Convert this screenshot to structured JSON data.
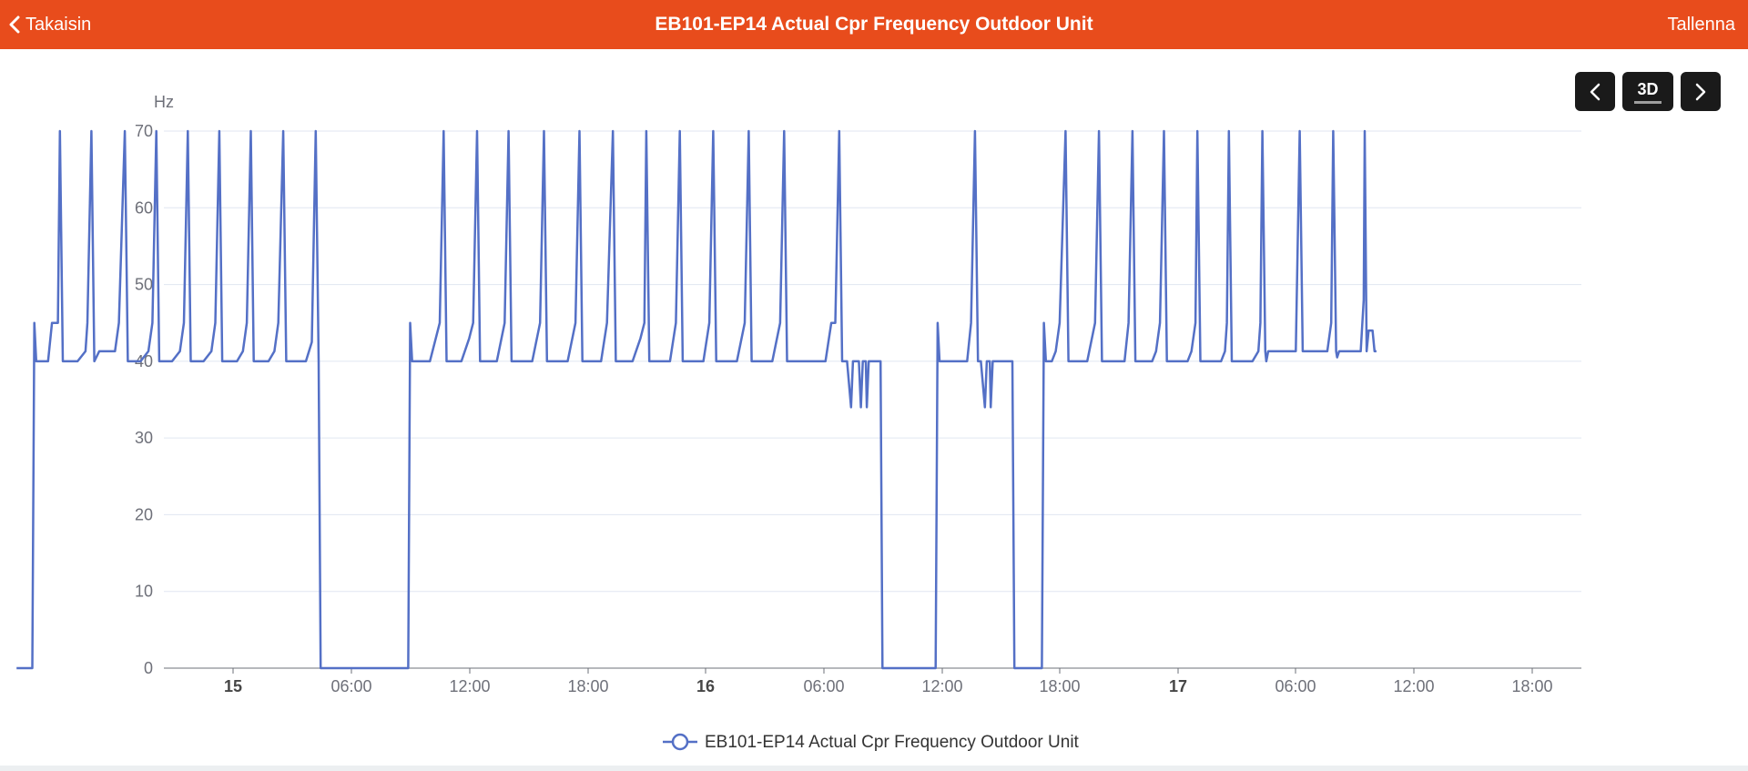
{
  "header": {
    "back_label": "Takaisin",
    "title": "EB101-EP14 Actual Cpr Frequency Outdoor Unit",
    "save_label": "Tallenna",
    "background_color": "#e84c1c"
  },
  "controls": {
    "prev_icon": "chevron-left-icon",
    "range_label": "3D",
    "next_icon": "chevron-right-icon"
  },
  "chart_data": {
    "type": "line",
    "title": "",
    "ylabel": "Hz",
    "xlabel": "",
    "ylim": [
      0,
      70
    ],
    "yticks": [
      0,
      10,
      20,
      30,
      40,
      50,
      60,
      70
    ],
    "grid": true,
    "legend_position": "bottom-center",
    "series_color": "#5470c6",
    "xticks": [
      {
        "label": "15",
        "bold": true
      },
      {
        "label": "06:00",
        "bold": false
      },
      {
        "label": "12:00",
        "bold": false
      },
      {
        "label": "18:00",
        "bold": false
      },
      {
        "label": "16",
        "bold": true
      },
      {
        "label": "06:00",
        "bold": false
      },
      {
        "label": "12:00",
        "bold": false
      },
      {
        "label": "18:00",
        "bold": false
      },
      {
        "label": "17",
        "bold": true
      },
      {
        "label": "06:00",
        "bold": false
      },
      {
        "label": "12:00",
        "bold": false
      },
      {
        "label": "18:00",
        "bold": false
      }
    ],
    "x_unit": "hours since 14 Dec 21:00",
    "x_range": [
      0,
      68.6
    ],
    "series": [
      {
        "name": "EB101-EP14 Actual Cpr Frequency Outdoor Unit",
        "points": [
          [
            0,
            0
          ],
          [
            0.8,
            0
          ],
          [
            0.9,
            45
          ],
          [
            1.0,
            40
          ],
          [
            1.6,
            40
          ],
          [
            1.8,
            45
          ],
          [
            2.1,
            45
          ],
          [
            2.2,
            70
          ],
          [
            2.35,
            40
          ],
          [
            3.1,
            40
          ],
          [
            3.5,
            41.3
          ],
          [
            3.6,
            45
          ],
          [
            3.8,
            70
          ],
          [
            3.95,
            40
          ],
          [
            4.2,
            41.3
          ],
          [
            5.0,
            41.3
          ],
          [
            5.2,
            45
          ],
          [
            5.5,
            70
          ],
          [
            5.65,
            40
          ],
          [
            6.3,
            40
          ],
          [
            6.7,
            41.3
          ],
          [
            6.9,
            45
          ],
          [
            7.1,
            70
          ],
          [
            7.25,
            40
          ],
          [
            7.9,
            40
          ],
          [
            8.3,
            41.3
          ],
          [
            8.5,
            45
          ],
          [
            8.7,
            70
          ],
          [
            8.85,
            40
          ],
          [
            9.5,
            40
          ],
          [
            9.9,
            41.3
          ],
          [
            10.1,
            45
          ],
          [
            10.3,
            70
          ],
          [
            10.45,
            40
          ],
          [
            11.2,
            40
          ],
          [
            11.5,
            41.3
          ],
          [
            11.7,
            45
          ],
          [
            11.9,
            70
          ],
          [
            12.05,
            40
          ],
          [
            12.8,
            40
          ],
          [
            13.1,
            41.3
          ],
          [
            13.3,
            45
          ],
          [
            13.55,
            70
          ],
          [
            13.7,
            40
          ],
          [
            14.7,
            40
          ],
          [
            15.0,
            42.5
          ],
          [
            15.2,
            70
          ],
          [
            15.35,
            40
          ],
          [
            15.45,
            0
          ],
          [
            19.9,
            0
          ],
          [
            20.0,
            45
          ],
          [
            20.1,
            40
          ],
          [
            21.0,
            40
          ],
          [
            21.3,
            43
          ],
          [
            21.5,
            45
          ],
          [
            21.7,
            70
          ],
          [
            21.85,
            40
          ],
          [
            22.6,
            40
          ],
          [
            23.0,
            43
          ],
          [
            23.2,
            45
          ],
          [
            23.4,
            70
          ],
          [
            23.55,
            40
          ],
          [
            24.4,
            40
          ],
          [
            24.8,
            45
          ],
          [
            25.0,
            70
          ],
          [
            25.15,
            40
          ],
          [
            26.2,
            40
          ],
          [
            26.6,
            45
          ],
          [
            26.8,
            70
          ],
          [
            26.95,
            40
          ],
          [
            28.0,
            40
          ],
          [
            28.4,
            45
          ],
          [
            28.6,
            70
          ],
          [
            28.75,
            40
          ],
          [
            29.7,
            40
          ],
          [
            30.0,
            45
          ],
          [
            30.3,
            70
          ],
          [
            30.45,
            40
          ],
          [
            31.3,
            40
          ],
          [
            31.7,
            43
          ],
          [
            31.9,
            45
          ],
          [
            32.0,
            70
          ],
          [
            32.15,
            40
          ],
          [
            33.2,
            40
          ],
          [
            33.5,
            45
          ],
          [
            33.7,
            70
          ],
          [
            33.85,
            40
          ],
          [
            34.9,
            40
          ],
          [
            35.2,
            45
          ],
          [
            35.4,
            70
          ],
          [
            35.55,
            40
          ],
          [
            36.6,
            40
          ],
          [
            37.0,
            45
          ],
          [
            37.2,
            70
          ],
          [
            37.35,
            40
          ],
          [
            38.4,
            40
          ],
          [
            38.8,
            45
          ],
          [
            39.0,
            70
          ],
          [
            39.15,
            40
          ],
          [
            41.1,
            40
          ],
          [
            41.4,
            45
          ],
          [
            41.6,
            45
          ],
          [
            41.8,
            70
          ],
          [
            41.95,
            40
          ],
          [
            42.2,
            40
          ],
          [
            42.4,
            34
          ],
          [
            42.5,
            40
          ],
          [
            42.8,
            40
          ],
          [
            42.9,
            34
          ],
          [
            43.0,
            40
          ],
          [
            43.15,
            40
          ],
          [
            43.2,
            34
          ],
          [
            43.3,
            40
          ],
          [
            43.9,
            40
          ],
          [
            44.0,
            0
          ],
          [
            46.7,
            0
          ],
          [
            46.8,
            45
          ],
          [
            46.9,
            40
          ],
          [
            48.3,
            40
          ],
          [
            48.5,
            45
          ],
          [
            48.7,
            70
          ],
          [
            48.85,
            40
          ],
          [
            49.0,
            40
          ],
          [
            49.2,
            34
          ],
          [
            49.3,
            40
          ],
          [
            49.45,
            40
          ],
          [
            49.5,
            34
          ],
          [
            49.6,
            40
          ],
          [
            50.6,
            40
          ],
          [
            50.7,
            0
          ],
          [
            52.1,
            0
          ],
          [
            52.2,
            45
          ],
          [
            52.3,
            40
          ],
          [
            52.6,
            40
          ],
          [
            52.8,
            41.3
          ],
          [
            53.0,
            45
          ],
          [
            53.3,
            70
          ],
          [
            53.45,
            40
          ],
          [
            54.4,
            40
          ],
          [
            54.8,
            45
          ],
          [
            55.0,
            70
          ],
          [
            55.15,
            40
          ],
          [
            56.3,
            40
          ],
          [
            56.5,
            45
          ],
          [
            56.7,
            70
          ],
          [
            56.85,
            40
          ],
          [
            57.7,
            40
          ],
          [
            57.9,
            41.3
          ],
          [
            58.1,
            45
          ],
          [
            58.3,
            70
          ],
          [
            58.45,
            40
          ],
          [
            59.5,
            40
          ],
          [
            59.7,
            41.3
          ],
          [
            59.9,
            45
          ],
          [
            60.0,
            70
          ],
          [
            60.15,
            40
          ],
          [
            61.2,
            40
          ],
          [
            61.4,
            41.3
          ],
          [
            61.5,
            45
          ],
          [
            61.6,
            70
          ],
          [
            61.75,
            40
          ],
          [
            62.8,
            40
          ],
          [
            63.1,
            41.3
          ],
          [
            63.2,
            45
          ],
          [
            63.3,
            70
          ],
          [
            63.45,
            41.3
          ],
          [
            63.5,
            40
          ],
          [
            63.6,
            41.3
          ],
          [
            65.0,
            41.3
          ],
          [
            65.2,
            70
          ],
          [
            65.35,
            41.3
          ],
          [
            66.6,
            41.3
          ],
          [
            66.8,
            45
          ],
          [
            66.9,
            70
          ],
          [
            67.05,
            41.3
          ],
          [
            67.1,
            40.5
          ],
          [
            67.2,
            41.3
          ],
          [
            68.3,
            41.3
          ],
          [
            68.45,
            48
          ],
          [
            68.5,
            70
          ],
          [
            68.6,
            41.3
          ],
          [
            68.7,
            44
          ],
          [
            68.9,
            44
          ],
          [
            69.0,
            41.3
          ],
          [
            69.1,
            41.3
          ]
        ]
      }
    ]
  }
}
